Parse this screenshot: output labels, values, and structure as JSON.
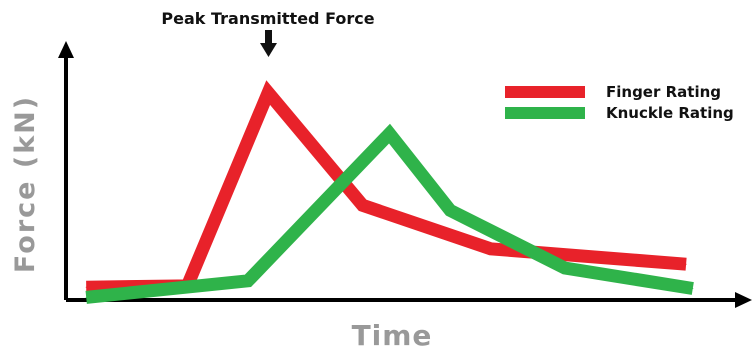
{
  "chart_data": {
    "type": "line",
    "title": "",
    "xlabel": "Time",
    "ylabel": "Force (kN)",
    "annotation": "Peak Transmitted Force",
    "x": [
      0,
      1,
      2,
      3,
      4,
      5,
      6,
      7,
      8,
      9,
      10
    ],
    "xlim": [
      0,
      10
    ],
    "ylim": [
      0,
      10
    ],
    "grid": false,
    "legend_position": "top-right",
    "series": [
      {
        "name": "Finger Rating",
        "color": "#e8222a",
        "points": [
          [
            0.3,
            0.5
          ],
          [
            1.8,
            0.55
          ],
          [
            3.0,
            8.1
          ],
          [
            4.4,
            3.7
          ],
          [
            6.3,
            2.0
          ],
          [
            9.2,
            1.4
          ]
        ]
      },
      {
        "name": "Knuckle Rating",
        "color": "#2fb34a",
        "points": [
          [
            0.3,
            0.1
          ],
          [
            2.7,
            0.75
          ],
          [
            4.8,
            6.5
          ],
          [
            5.7,
            3.5
          ],
          [
            7.4,
            1.25
          ],
          [
            9.3,
            0.45
          ]
        ]
      }
    ]
  },
  "colors": {
    "axis": "#000000",
    "axis_label": "#999999",
    "annotation": "#111111",
    "legend_text": "#111111"
  }
}
